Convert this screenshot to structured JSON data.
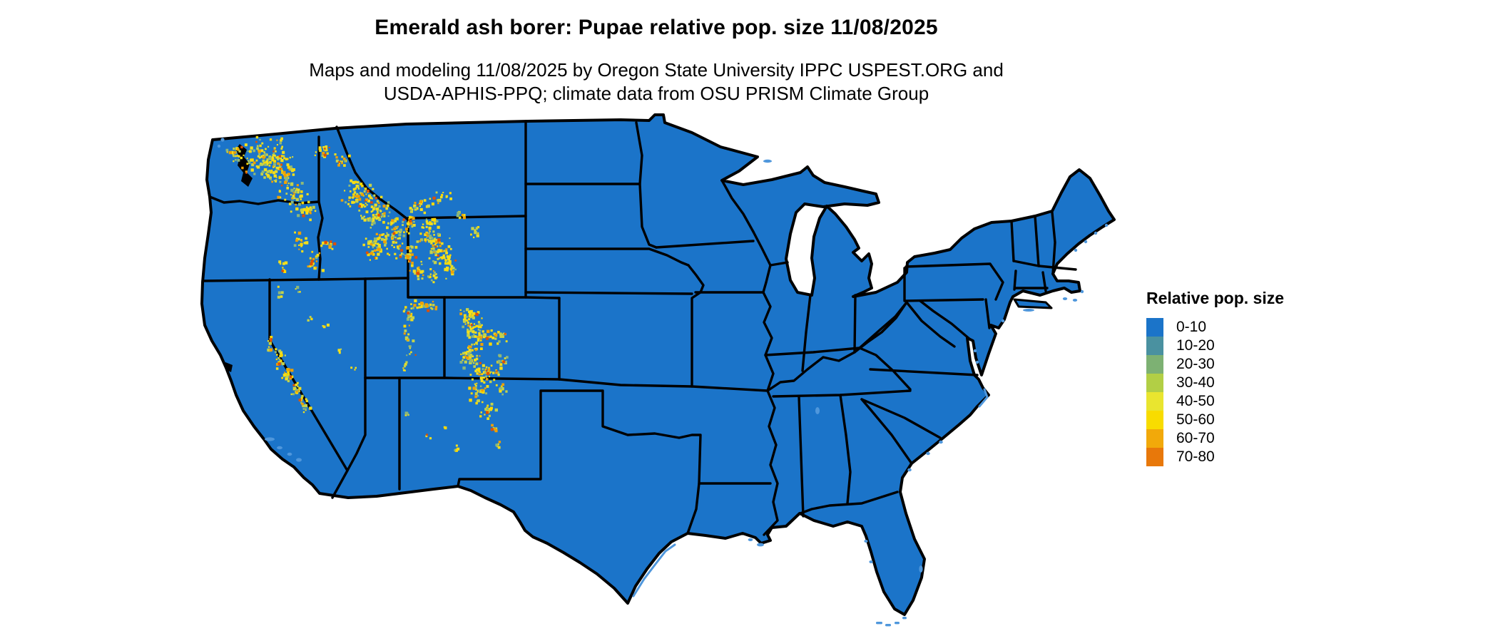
{
  "header": {
    "title": "Emerald ash borer: Pupae relative pop. size 11/08/2025",
    "subtitle_line1": "Maps and modeling 11/08/2025 by Oregon State University IPPC USPEST.ORG and",
    "subtitle_line2": "USDA-APHIS-PPQ; climate data from OSU PRISM Climate Group"
  },
  "legend": {
    "title": "Relative pop. size",
    "entries": [
      {
        "label": "0-10",
        "color": "#1b74c9"
      },
      {
        "label": "10-20",
        "color": "#4a91a0"
      },
      {
        "label": "20-30",
        "color": "#7db173"
      },
      {
        "label": "30-40",
        "color": "#b2cf45"
      },
      {
        "label": "40-50",
        "color": "#e9e52f"
      },
      {
        "label": "50-60",
        "color": "#f8dc00"
      },
      {
        "label": "60-70",
        "color": "#f2a90a"
      },
      {
        "label": "70-80",
        "color": "#e8780a"
      }
    ]
  },
  "map": {
    "land_color": "#1b74c9",
    "border_color": "#000000",
    "coastal_water_color": "#4f97dc",
    "background_color": "#ffffff",
    "hotspot_colors": [
      "#f2df1d",
      "#ffd900",
      "#c3d24b",
      "#8db87a",
      "#f0a000",
      "#e04f00"
    ]
  }
}
